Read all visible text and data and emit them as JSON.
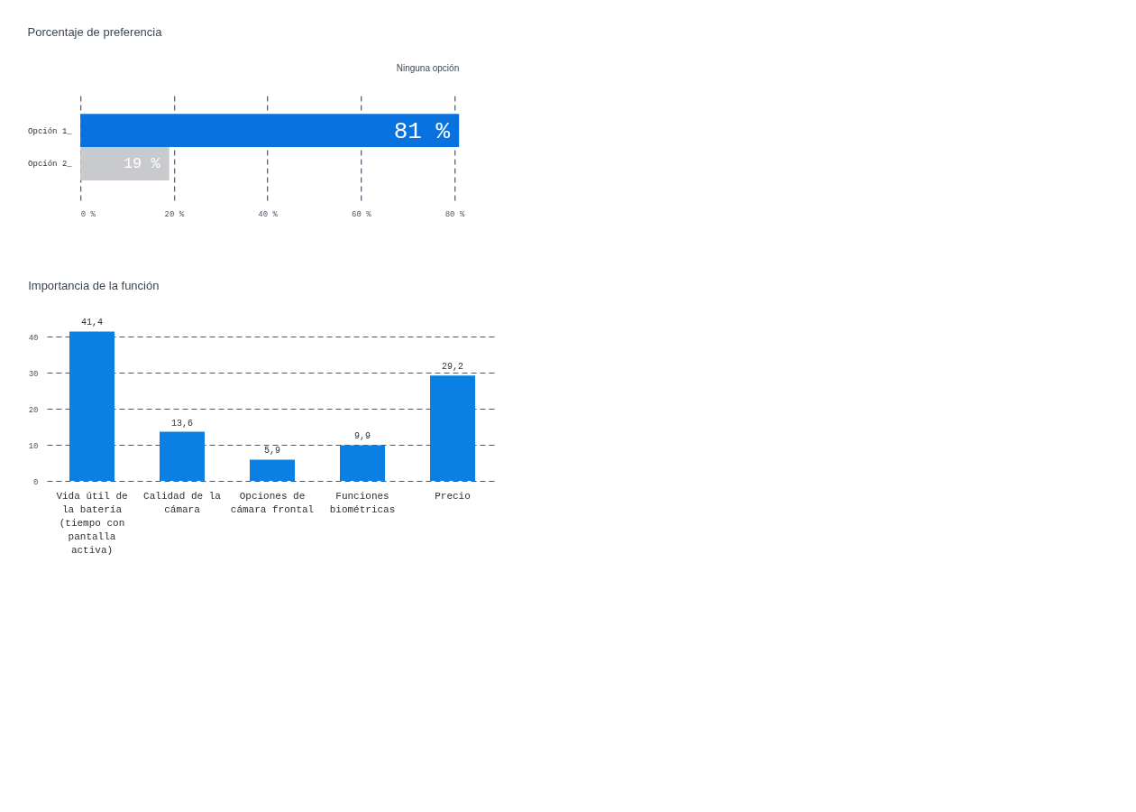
{
  "chart_data": [
    {
      "type": "bar",
      "orientation": "horizontal",
      "title": "Porcentaje de preferencia",
      "categories": [
        "Opción 1_",
        "Opción 2_"
      ],
      "values": [
        81,
        19
      ],
      "colors": [
        "#0873e0",
        "#c8cacd"
      ],
      "value_labels": [
        "81 %",
        "19 %"
      ],
      "xlim": [
        0,
        81
      ],
      "xticks": [
        {
          "value": 0,
          "label": "0 %"
        },
        {
          "value": 20,
          "label": "20 %"
        },
        {
          "value": 40,
          "label": "40 %"
        },
        {
          "value": 60,
          "label": "60 %"
        },
        {
          "value": 80,
          "label": "80 %"
        }
      ],
      "grid": "x",
      "annotations": [
        "Ninguna opción"
      ]
    },
    {
      "type": "bar",
      "title": "Importancia de la función",
      "categories": [
        "Vida útil de la batería (tiempo con pantalla activa)",
        "Calidad de la cámara",
        "Opciones de cámara frontal",
        "Funciones biométricas",
        "Precio"
      ],
      "values": [
        41.4,
        13.6,
        5.9,
        9.9,
        29.2
      ],
      "color": "#0a80e4",
      "value_labels": [
        "41,4",
        "13,6",
        "5,9",
        "9,9",
        "29,2"
      ],
      "ylim": [
        0,
        42
      ],
      "yticks": [
        0,
        10,
        20,
        30,
        40
      ],
      "grid": "y"
    }
  ]
}
